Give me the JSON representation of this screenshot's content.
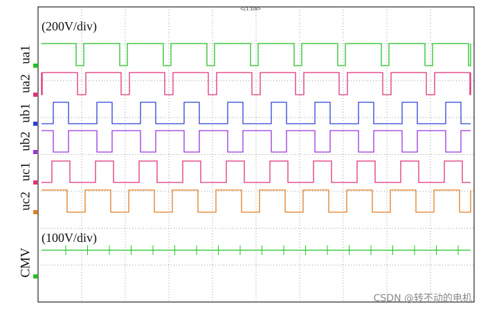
{
  "header": {
    "timebase": "<Z1:10k>",
    "scale_top": "(200V/div)",
    "scale_bottom": "(100V/div)"
  },
  "traces": [
    {
      "label": "ua1",
      "color": "#22c322"
    },
    {
      "label": "ua2",
      "color": "#e0307a"
    },
    {
      "label": "ub1",
      "color": "#2b3fd8"
    },
    {
      "label": "ub2",
      "color": "#9933e0"
    },
    {
      "label": "uc1",
      "color": "#e0307a"
    },
    {
      "label": "uc2",
      "color": "#e07c22"
    },
    {
      "label": "CMV",
      "color": "#22c322"
    }
  ],
  "watermark": "CSDN @转不动的电机"
}
